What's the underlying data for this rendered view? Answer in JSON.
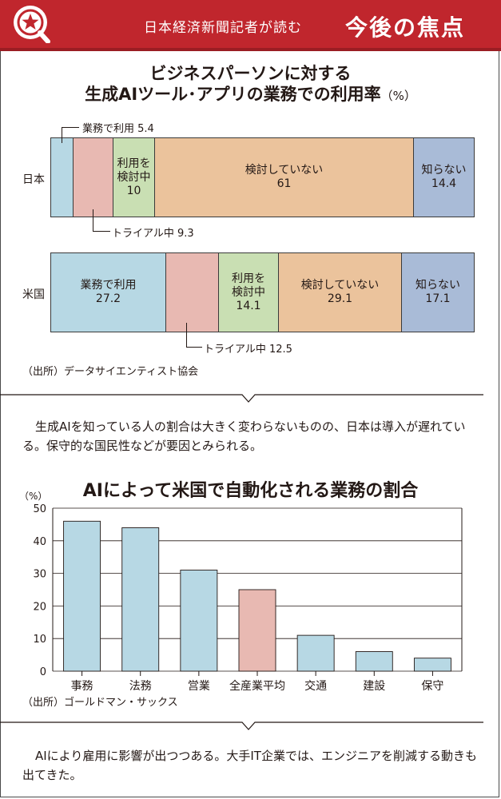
{
  "header": {
    "subtitle": "日本経済新聞記者が読む",
    "title": "今後の焦点"
  },
  "colors": {
    "header_red": "#c0262d",
    "work_blue": "#b7d8e4",
    "trial_pink": "#e8b9b2",
    "in_use_green": "#c9dfb3",
    "not_considering_orange": "#ebc39c",
    "dont_know_purple": "#a9bbd7",
    "bar_blue": "#b7d8e4",
    "bar_pink": "#e8b9b2"
  },
  "chart1": {
    "title_line1": "ビジネスパーソンに対する",
    "title_line2": "生成AIツール･アプリの業務での利用率",
    "unit": "（%）",
    "source": "（出所）データサイエンティスト協会",
    "chart_data": {
      "type": "bar",
      "stacked": true,
      "orientation": "horizontal",
      "unit": "%",
      "categories": [
        "日本",
        "米国"
      ],
      "series": [
        {
          "name": "業務で利用",
          "values": [
            5.4,
            27.2
          ]
        },
        {
          "name": "トライアル中",
          "values": [
            9.3,
            12.5
          ]
        },
        {
          "name": "利用を検討中",
          "values": [
            10,
            14.1
          ]
        },
        {
          "name": "検討していない",
          "values": [
            61,
            29.1
          ]
        },
        {
          "name": "知らない",
          "values": [
            14.4,
            17.1
          ]
        }
      ]
    },
    "japan": {
      "label": "日本",
      "callout_use": "業務で利用 5.4",
      "callout_trial": "トライアル中 9.3",
      "seg_consider": "利用を\n検討中\n10",
      "seg_not": "検討していない\n61",
      "seg_unknown": "知らない\n14.4"
    },
    "usa": {
      "label": "米国",
      "seg_use": "業務で利用\n27.2",
      "callout_trial": "トライアル中 12.5",
      "seg_consider": "利用を\n検討中\n14.1",
      "seg_not": "検討していない\n29.1",
      "seg_unknown": "知らない\n17.1"
    }
  },
  "comment1": "生成AIを知っている人の割合は大きく変わらないものの、日本は導入が遅れている。保守的な国民性などが要因とみられる。",
  "chart2": {
    "title": "AIによって米国で自動化される業務の割合",
    "unit": "（%）",
    "source": "（出所）ゴールドマン・サックス",
    "chart_data": {
      "type": "bar",
      "unit": "%",
      "categories": [
        "事務",
        "法務",
        "営業",
        "全産業平均",
        "交通",
        "建設",
        "保守"
      ],
      "values": [
        46,
        44,
        31,
        25,
        11,
        6,
        4
      ],
      "highlight": "全産業平均",
      "ylim": [
        0,
        50
      ],
      "yticks": [
        0,
        10,
        20,
        30,
        40,
        50
      ]
    }
  },
  "comment2": "AIにより雇用に影響が出つつある。大手IT企業では、エンジニアを削減する動きも出てきた。"
}
